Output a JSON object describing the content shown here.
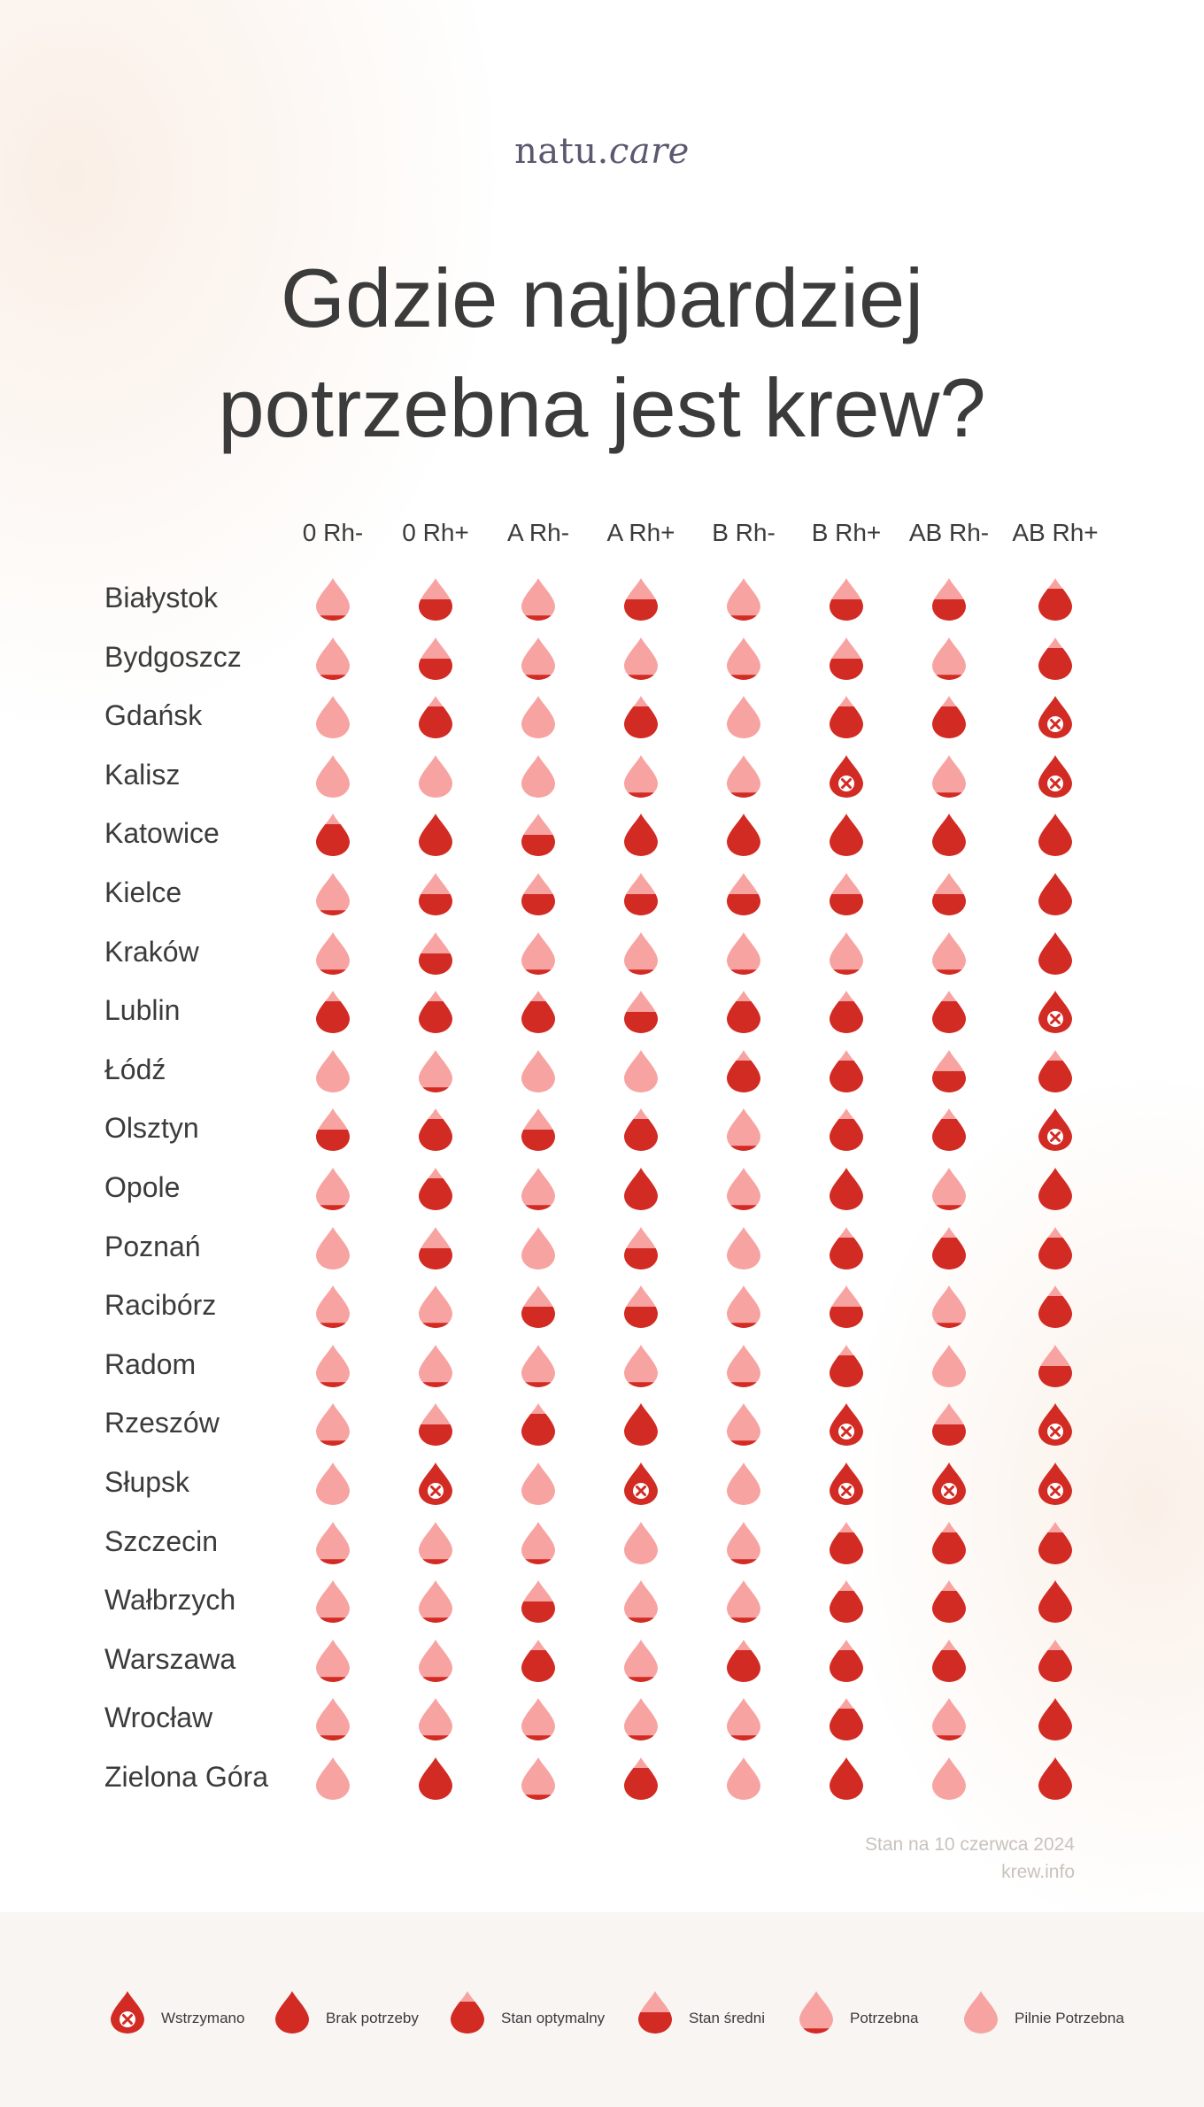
{
  "brand": {
    "name_main": "natu.",
    "name_accent": "care"
  },
  "title": {
    "line1": "Gdzie najbardziej",
    "line2": "potrzebna jest krew?"
  },
  "columns": [
    "0 Rh-",
    "0 Rh+",
    "A Rh-",
    "A Rh+",
    "B Rh-",
    "B Rh+",
    "AB Rh-",
    "AB Rh+"
  ],
  "statuses": {
    "X": {
      "label": "Wstrzymano",
      "fill": 1.0
    },
    "B": {
      "label": "Brak potrzeby",
      "fill": 1.0
    },
    "O": {
      "label": "Stan optymalny",
      "fill": 0.75
    },
    "S": {
      "label": "Stan średni",
      "fill": 0.5
    },
    "P": {
      "label": "Potrzebna",
      "fill": 0.12
    },
    "U": {
      "label": "Pilnie Potrzebna",
      "fill": 0.0
    }
  },
  "legend_order": [
    "X",
    "B",
    "O",
    "S",
    "P",
    "U"
  ],
  "colors": {
    "dark_red": "#d22b23",
    "light_pink": "#f7a3a1",
    "text": "#3b3b3b",
    "note": "#c9c2bd"
  },
  "rows": [
    {
      "city": "Białystok",
      "levels": [
        "P",
        "S",
        "P",
        "S",
        "P",
        "S",
        "S",
        "O"
      ]
    },
    {
      "city": "Bydgoszcz",
      "levels": [
        "P",
        "S",
        "P",
        "P",
        "P",
        "S",
        "P",
        "O"
      ]
    },
    {
      "city": "Gdańsk",
      "levels": [
        "U",
        "O",
        "U",
        "O",
        "U",
        "O",
        "O",
        "X"
      ]
    },
    {
      "city": "Kalisz",
      "levels": [
        "U",
        "U",
        "U",
        "P",
        "P",
        "X",
        "P",
        "X"
      ]
    },
    {
      "city": "Katowice",
      "levels": [
        "O",
        "B",
        "S",
        "B",
        "B",
        "B",
        "B",
        "B"
      ]
    },
    {
      "city": "Kielce",
      "levels": [
        "P",
        "S",
        "S",
        "S",
        "S",
        "S",
        "S",
        "B"
      ]
    },
    {
      "city": "Kraków",
      "levels": [
        "P",
        "S",
        "P",
        "P",
        "P",
        "P",
        "P",
        "B"
      ]
    },
    {
      "city": "Lublin",
      "levels": [
        "O",
        "O",
        "O",
        "S",
        "O",
        "O",
        "O",
        "X"
      ]
    },
    {
      "city": "Łódź",
      "levels": [
        "U",
        "P",
        "U",
        "U",
        "O",
        "O",
        "S",
        "O"
      ]
    },
    {
      "city": "Olsztyn",
      "levels": [
        "S",
        "O",
        "S",
        "O",
        "P",
        "O",
        "O",
        "X"
      ]
    },
    {
      "city": "Opole",
      "levels": [
        "P",
        "O",
        "P",
        "B",
        "P",
        "B",
        "P",
        "B"
      ]
    },
    {
      "city": "Poznań",
      "levels": [
        "U",
        "S",
        "U",
        "S",
        "U",
        "O",
        "O",
        "O"
      ]
    },
    {
      "city": "Racibórz",
      "levels": [
        "P",
        "P",
        "S",
        "S",
        "P",
        "S",
        "P",
        "O"
      ]
    },
    {
      "city": "Radom",
      "levels": [
        "P",
        "P",
        "P",
        "P",
        "P",
        "O",
        "U",
        "S"
      ]
    },
    {
      "city": "Rzeszów",
      "levels": [
        "P",
        "S",
        "O",
        "B",
        "P",
        "X",
        "S",
        "X"
      ]
    },
    {
      "city": "Słupsk",
      "levels": [
        "U",
        "X",
        "U",
        "X",
        "U",
        "X",
        "X",
        "X"
      ]
    },
    {
      "city": "Szczecin",
      "levels": [
        "P",
        "P",
        "P",
        "U",
        "P",
        "O",
        "O",
        "O"
      ]
    },
    {
      "city": "Wałbrzych",
      "levels": [
        "P",
        "P",
        "S",
        "P",
        "P",
        "O",
        "O",
        "B"
      ]
    },
    {
      "city": "Warszawa",
      "levels": [
        "P",
        "P",
        "O",
        "P",
        "O",
        "O",
        "O",
        "O"
      ]
    },
    {
      "city": "Wrocław",
      "levels": [
        "P",
        "P",
        "P",
        "P",
        "P",
        "O",
        "P",
        "B"
      ]
    },
    {
      "city": "Zielona Góra",
      "levels": [
        "U",
        "B",
        "P",
        "O",
        "U",
        "B",
        "U",
        "B"
      ]
    }
  ],
  "footnote": {
    "line1": "Stan na 10 czerwca 2024",
    "line2": "krew.info"
  }
}
